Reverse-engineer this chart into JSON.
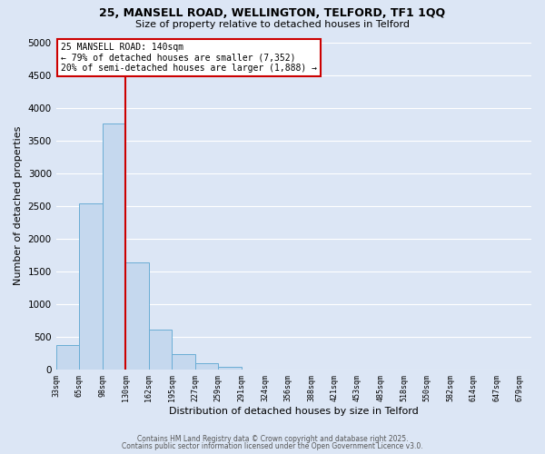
{
  "title_line1": "25, MANSELL ROAD, WELLINGTON, TELFORD, TF1 1QQ",
  "title_line2": "Size of property relative to detached houses in Telford",
  "xlabel": "Distribution of detached houses by size in Telford",
  "ylabel": "Number of detached properties",
  "bin_labels": [
    "33sqm",
    "65sqm",
    "98sqm",
    "130sqm",
    "162sqm",
    "195sqm",
    "227sqm",
    "259sqm",
    "291sqm",
    "324sqm",
    "356sqm",
    "388sqm",
    "421sqm",
    "453sqm",
    "485sqm",
    "518sqm",
    "550sqm",
    "582sqm",
    "614sqm",
    "647sqm",
    "679sqm"
  ],
  "bar_values": [
    370,
    2540,
    3760,
    1640,
    610,
    240,
    100,
    45,
    0,
    0,
    0,
    0,
    0,
    0,
    0,
    0,
    0,
    0,
    0,
    0
  ],
  "bar_color": "#c5d8ee",
  "bar_edge_color": "#6aadd5",
  "background_color": "#dce6f5",
  "grid_color": "#ffffff",
  "vline_position": 3,
  "vline_color": "#cc0000",
  "ylim_min": 0,
  "ylim_max": 5000,
  "yticks": [
    0,
    500,
    1000,
    1500,
    2000,
    2500,
    3000,
    3500,
    4000,
    4500,
    5000
  ],
  "annotation_title": "25 MANSELL ROAD: 140sqm",
  "annotation_line1": "← 79% of detached houses are smaller (7,352)",
  "annotation_line2": "20% of semi-detached houses are larger (1,888) →",
  "annotation_box_color": "#ffffff",
  "annotation_box_edge": "#cc0000",
  "footer_line1": "Contains HM Land Registry data © Crown copyright and database right 2025.",
  "footer_line2": "Contains public sector information licensed under the Open Government Licence v3.0."
}
